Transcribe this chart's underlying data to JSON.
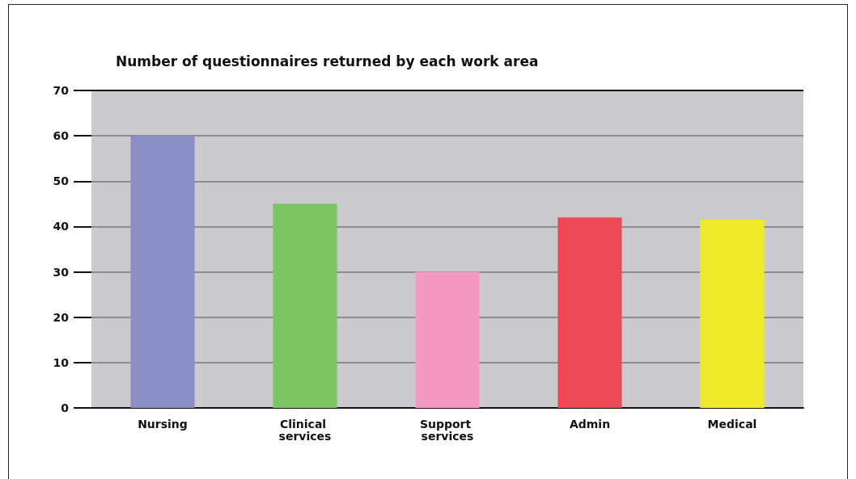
{
  "chart_data": {
    "type": "bar",
    "title": "Number of questionnaires returned by each work area",
    "categories": [
      "Nursing",
      "Clinical services",
      "Support services",
      "Admin",
      "Medical"
    ],
    "values": [
      60,
      45,
      30,
      42,
      41.5
    ],
    "colors": [
      "#8b8fc6",
      "#7dc462",
      "#f49ac1",
      "#ee4a55",
      "#eee92b"
    ],
    "ylim": [
      0,
      70
    ],
    "yticks": [
      0,
      10,
      20,
      30,
      40,
      50,
      60,
      70
    ],
    "grid": "y"
  }
}
